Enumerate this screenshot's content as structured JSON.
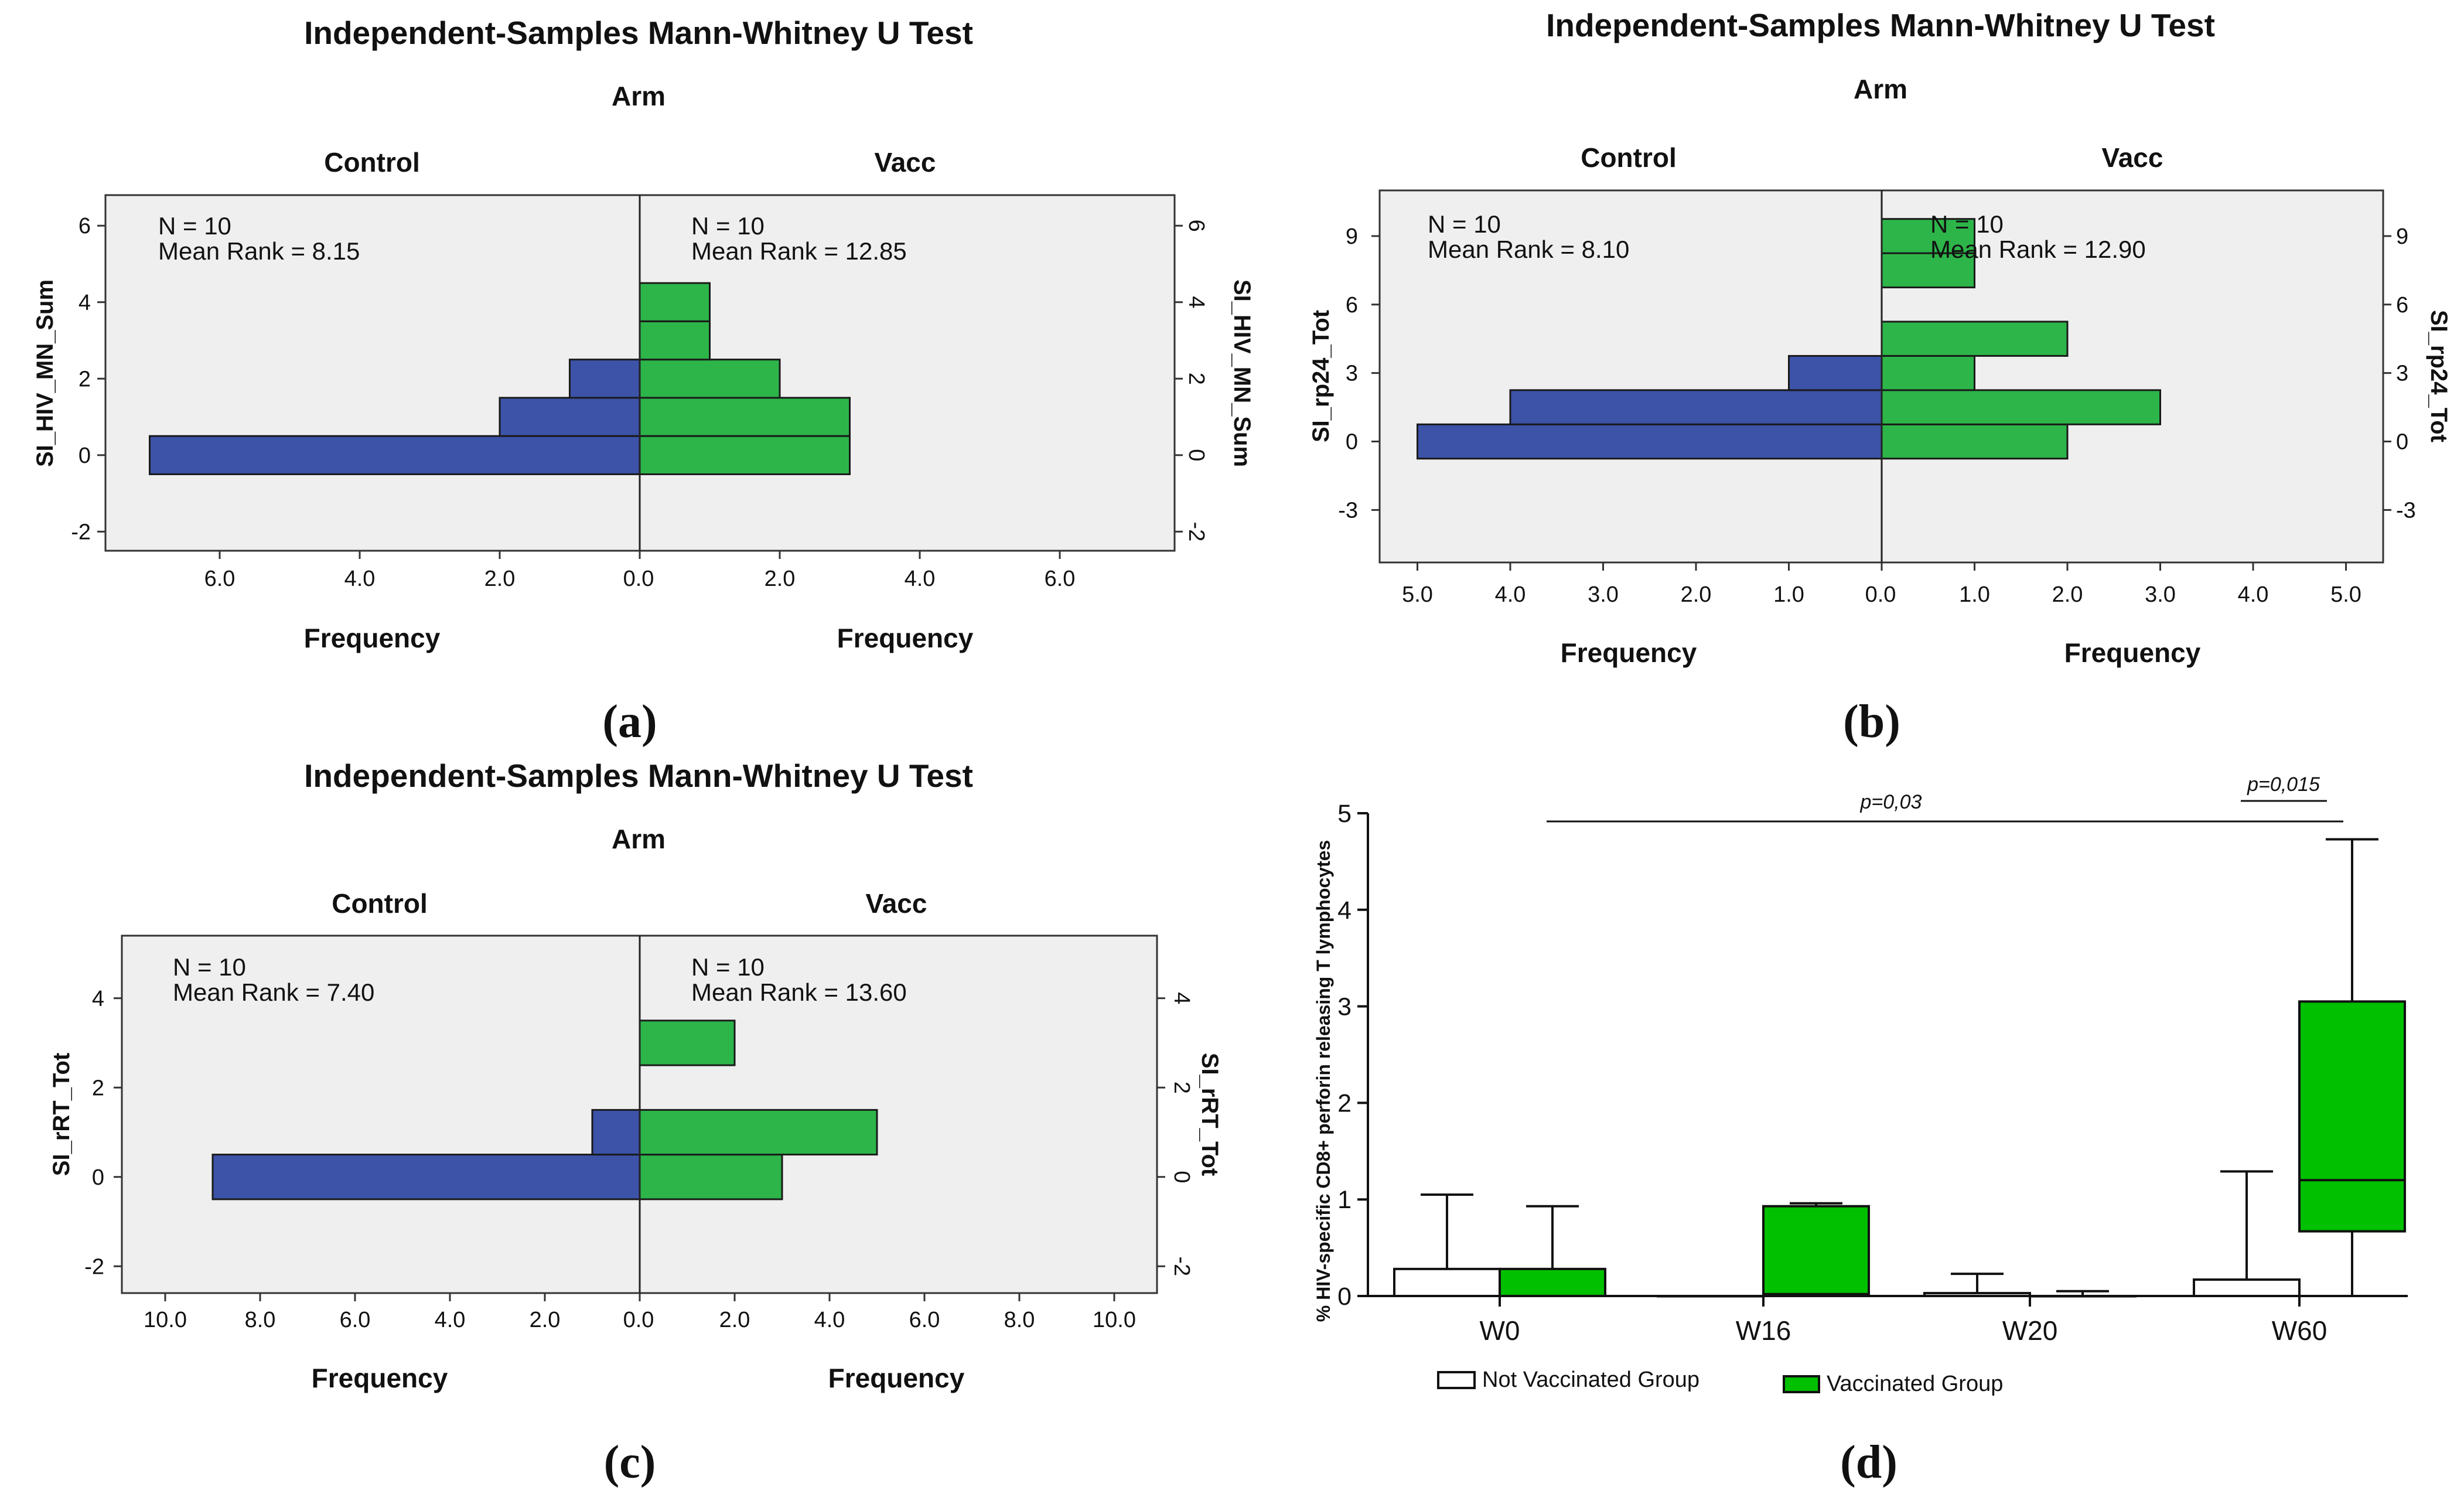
{
  "chart_data": [
    {
      "id": "a",
      "type": "bar",
      "subtype": "back-to-back histogram",
      "title": "Independent-Samples Mann-Whitney U Test",
      "group_variable": "Arm",
      "variable": "SI_HIV_MN_Sum",
      "panel_label": "(a)",
      "ylim": [
        -2.5,
        6.8
      ],
      "yticks": [
        -2,
        0,
        2,
        4,
        6
      ],
      "xticks_left": [
        "6.0",
        "4.0",
        "2.0",
        "0.0"
      ],
      "xticks_right": [
        "0.0",
        "2.0",
        "4.0",
        "6.0"
      ],
      "xmax": 7.6,
      "bin_width": 1,
      "xlabel": "Frequency",
      "groups": [
        {
          "name": "Control",
          "color": "#3c53a8",
          "n_label": "N = 10",
          "mean_rank_label": "Mean Rank = 8.15",
          "bins": [
            {
              "center": 0,
              "freq": 7
            },
            {
              "center": 1,
              "freq": 2
            },
            {
              "center": 2,
              "freq": 1
            }
          ]
        },
        {
          "name": "Vacc",
          "color": "#2db549",
          "n_label": "N = 10",
          "mean_rank_label": "Mean Rank = 12.85",
          "bins": [
            {
              "center": 0,
              "freq": 3
            },
            {
              "center": 1,
              "freq": 3
            },
            {
              "center": 2,
              "freq": 2
            },
            {
              "center": 3,
              "freq": 1
            },
            {
              "center": 4,
              "freq": 1
            }
          ]
        }
      ]
    },
    {
      "id": "b",
      "type": "bar",
      "subtype": "back-to-back histogram",
      "title": "Independent-Samples Mann-Whitney U Test",
      "group_variable": "Arm",
      "variable": "SI_rp24_Tot",
      "panel_label": "(b)",
      "ylim": [
        -5.3,
        11
      ],
      "yticks": [
        -3,
        0,
        3,
        6,
        9
      ],
      "xticks_left": [
        "5.0",
        "4.0",
        "3.0",
        "2.0",
        "1.0",
        "0.0"
      ],
      "xticks_right": [
        "0.0",
        "1.0",
        "2.0",
        "3.0",
        "4.0",
        "5.0"
      ],
      "xmax": 5.5,
      "bin_width": 1.5,
      "xlabel": "Frequency",
      "groups": [
        {
          "name": "Control",
          "color": "#3c53a8",
          "n_label": "N = 10",
          "mean_rank_label": "Mean Rank = 8.10",
          "bins": [
            {
              "center": 0,
              "freq": 5
            },
            {
              "center": 1.5,
              "freq": 4
            },
            {
              "center": 3,
              "freq": 1
            }
          ]
        },
        {
          "name": "Vacc",
          "color": "#2db549",
          "n_label": "N = 10",
          "mean_rank_label": "Mean Rank = 12.90",
          "bins": [
            {
              "center": 0,
              "freq": 2
            },
            {
              "center": 1.5,
              "freq": 3
            },
            {
              "center": 3,
              "freq": 1
            },
            {
              "center": 4.5,
              "freq": 2
            },
            {
              "center": 7.5,
              "freq": 1
            },
            {
              "center": 9,
              "freq": 1
            }
          ]
        }
      ]
    },
    {
      "id": "c",
      "type": "bar",
      "subtype": "back-to-back histogram",
      "title": "Independent-Samples Mann-Whitney U Test",
      "group_variable": "Arm",
      "variable": "SI_rRT_Tot",
      "panel_label": "(c)",
      "ylim": [
        -2.6,
        5.4
      ],
      "yticks": [
        -2,
        0,
        2,
        4
      ],
      "xticks_left": [
        "10.0",
        "8.0",
        "6.0",
        "4.0",
        "2.0",
        "0.0"
      ],
      "xticks_right": [
        "0.0",
        "2.0",
        "4.0",
        "6.0",
        "8.0",
        "10.0"
      ],
      "xmax": 11,
      "bin_width": 1,
      "xlabel": "Frequency",
      "groups": [
        {
          "name": "Control",
          "color": "#3c53a8",
          "n_label": "N = 10",
          "mean_rank_label": "Mean Rank = 7.40",
          "bins": [
            {
              "center": 0,
              "freq": 9
            },
            {
              "center": 1,
              "freq": 1
            }
          ]
        },
        {
          "name": "Vacc",
          "color": "#2db549",
          "n_label": "N = 10",
          "mean_rank_label": "Mean Rank = 13.60",
          "bins": [
            {
              "center": 0,
              "freq": 3
            },
            {
              "center": 1,
              "freq": 5
            },
            {
              "center": 3,
              "freq": 2
            }
          ]
        }
      ]
    },
    {
      "id": "d",
      "type": "bar",
      "subtype": "box plot",
      "panel_label": "(d)",
      "ylabel": "% HIV-specific CD8+ perforin releasing T lymphocytes",
      "ylim": [
        0,
        5
      ],
      "yticks": [
        0,
        1,
        2,
        3,
        4,
        5
      ],
      "categories": [
        "W0",
        "W16",
        "W20",
        "W60"
      ],
      "series": [
        {
          "name": "Not Vaccinated Group",
          "color": "#ffffff",
          "boxes": [
            {
              "min": 0,
              "q1": 0,
              "median": 0,
              "q3": 0.28,
              "max": 1.05
            },
            {
              "min": 0,
              "q1": 0,
              "median": 0,
              "q3": 0,
              "max": 0
            },
            {
              "min": 0,
              "q1": 0,
              "median": 0,
              "q3": 0.03,
              "max": 0.23
            },
            {
              "min": 0,
              "q1": 0,
              "median": 0,
              "q3": 0.17,
              "max": 1.29
            }
          ]
        },
        {
          "name": "Vaccinated Group",
          "color": "#00c000",
          "boxes": [
            {
              "min": 0,
              "q1": 0,
              "median": 0,
              "q3": 0.28,
              "max": 0.93
            },
            {
              "min": 0,
              "q1": 0,
              "median": 0.02,
              "q3": 0.93,
              "max": 0.96
            },
            {
              "min": 0,
              "q1": 0,
              "median": 0,
              "q3": 0,
              "max": 0.05
            },
            {
              "min": 0,
              "q1": 0.67,
              "median": 1.2,
              "q3": 3.05,
              "max": 4.73
            }
          ]
        }
      ],
      "annotations": [
        {
          "text": "p=0,03",
          "from": "W0",
          "to": "W60"
        },
        {
          "text": "p=0,015",
          "within": "W60"
        }
      ]
    }
  ]
}
